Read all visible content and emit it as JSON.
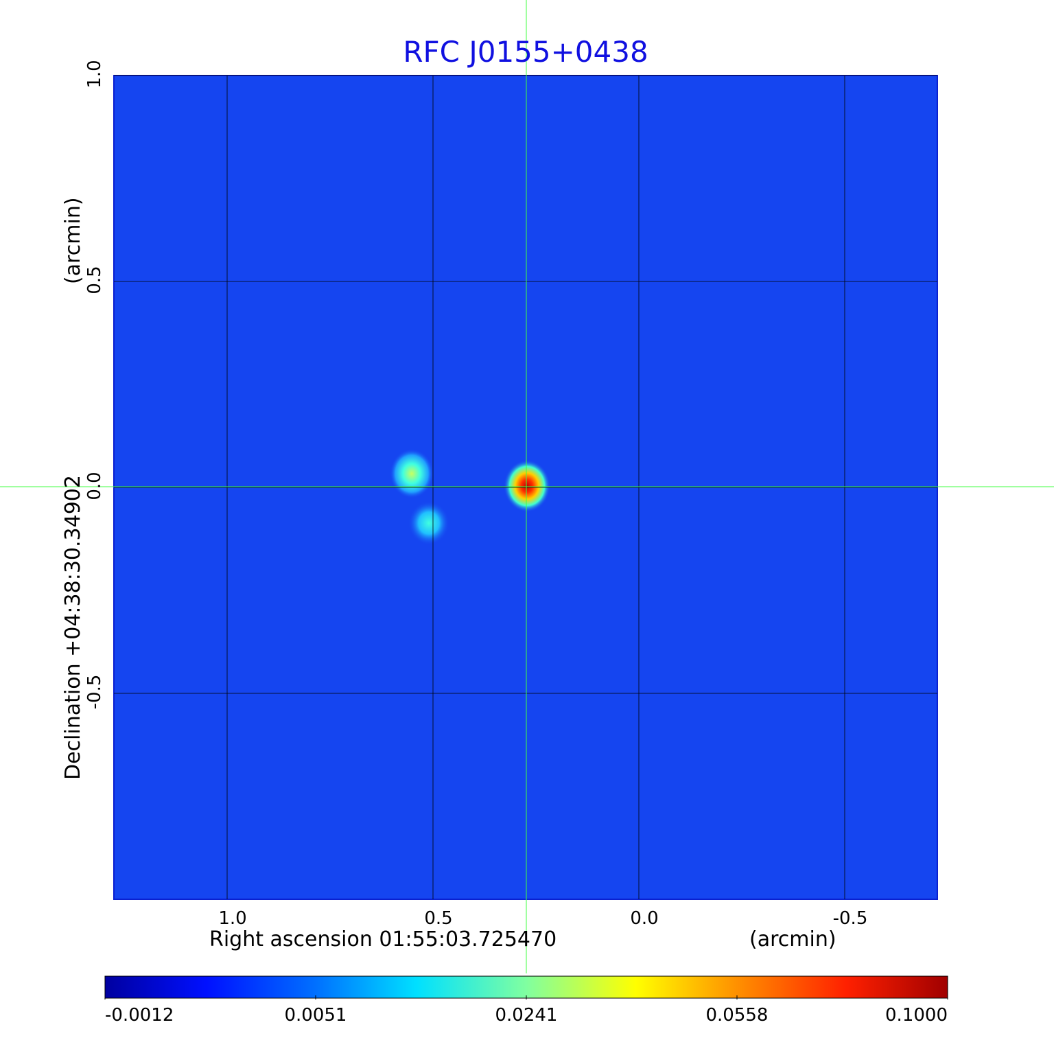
{
  "chart_data": {
    "type": "image",
    "title": "RFC J0155+0438",
    "xlabel": "Right ascension  01:55:03.725470",
    "xunit": "(arcmin)",
    "ylabel": "Declination  +04:38:30.34902",
    "yunit": "(arcmin)",
    "xlim": [
      1.275,
      -0.725
    ],
    "ylim": [
      -1.0,
      1.0
    ],
    "xticks": [
      {
        "value": 1.0,
        "label": "1.0"
      },
      0.5,
      {
        "value": 0.0,
        "label": "0.0"
      },
      -0.5
    ],
    "yticks": [
      {
        "value": 1.0,
        "label": "1.0"
      },
      0.5,
      {
        "value": 0.0,
        "label": "0.0"
      },
      -0.5
    ],
    "grid": true,
    "colorbar": {
      "ticks": [
        -0.0012,
        0.0051,
        0.0241,
        0.0558,
        {
          "value": 0.1,
          "label": "0.1000"
        }
      ]
    }
  }
}
